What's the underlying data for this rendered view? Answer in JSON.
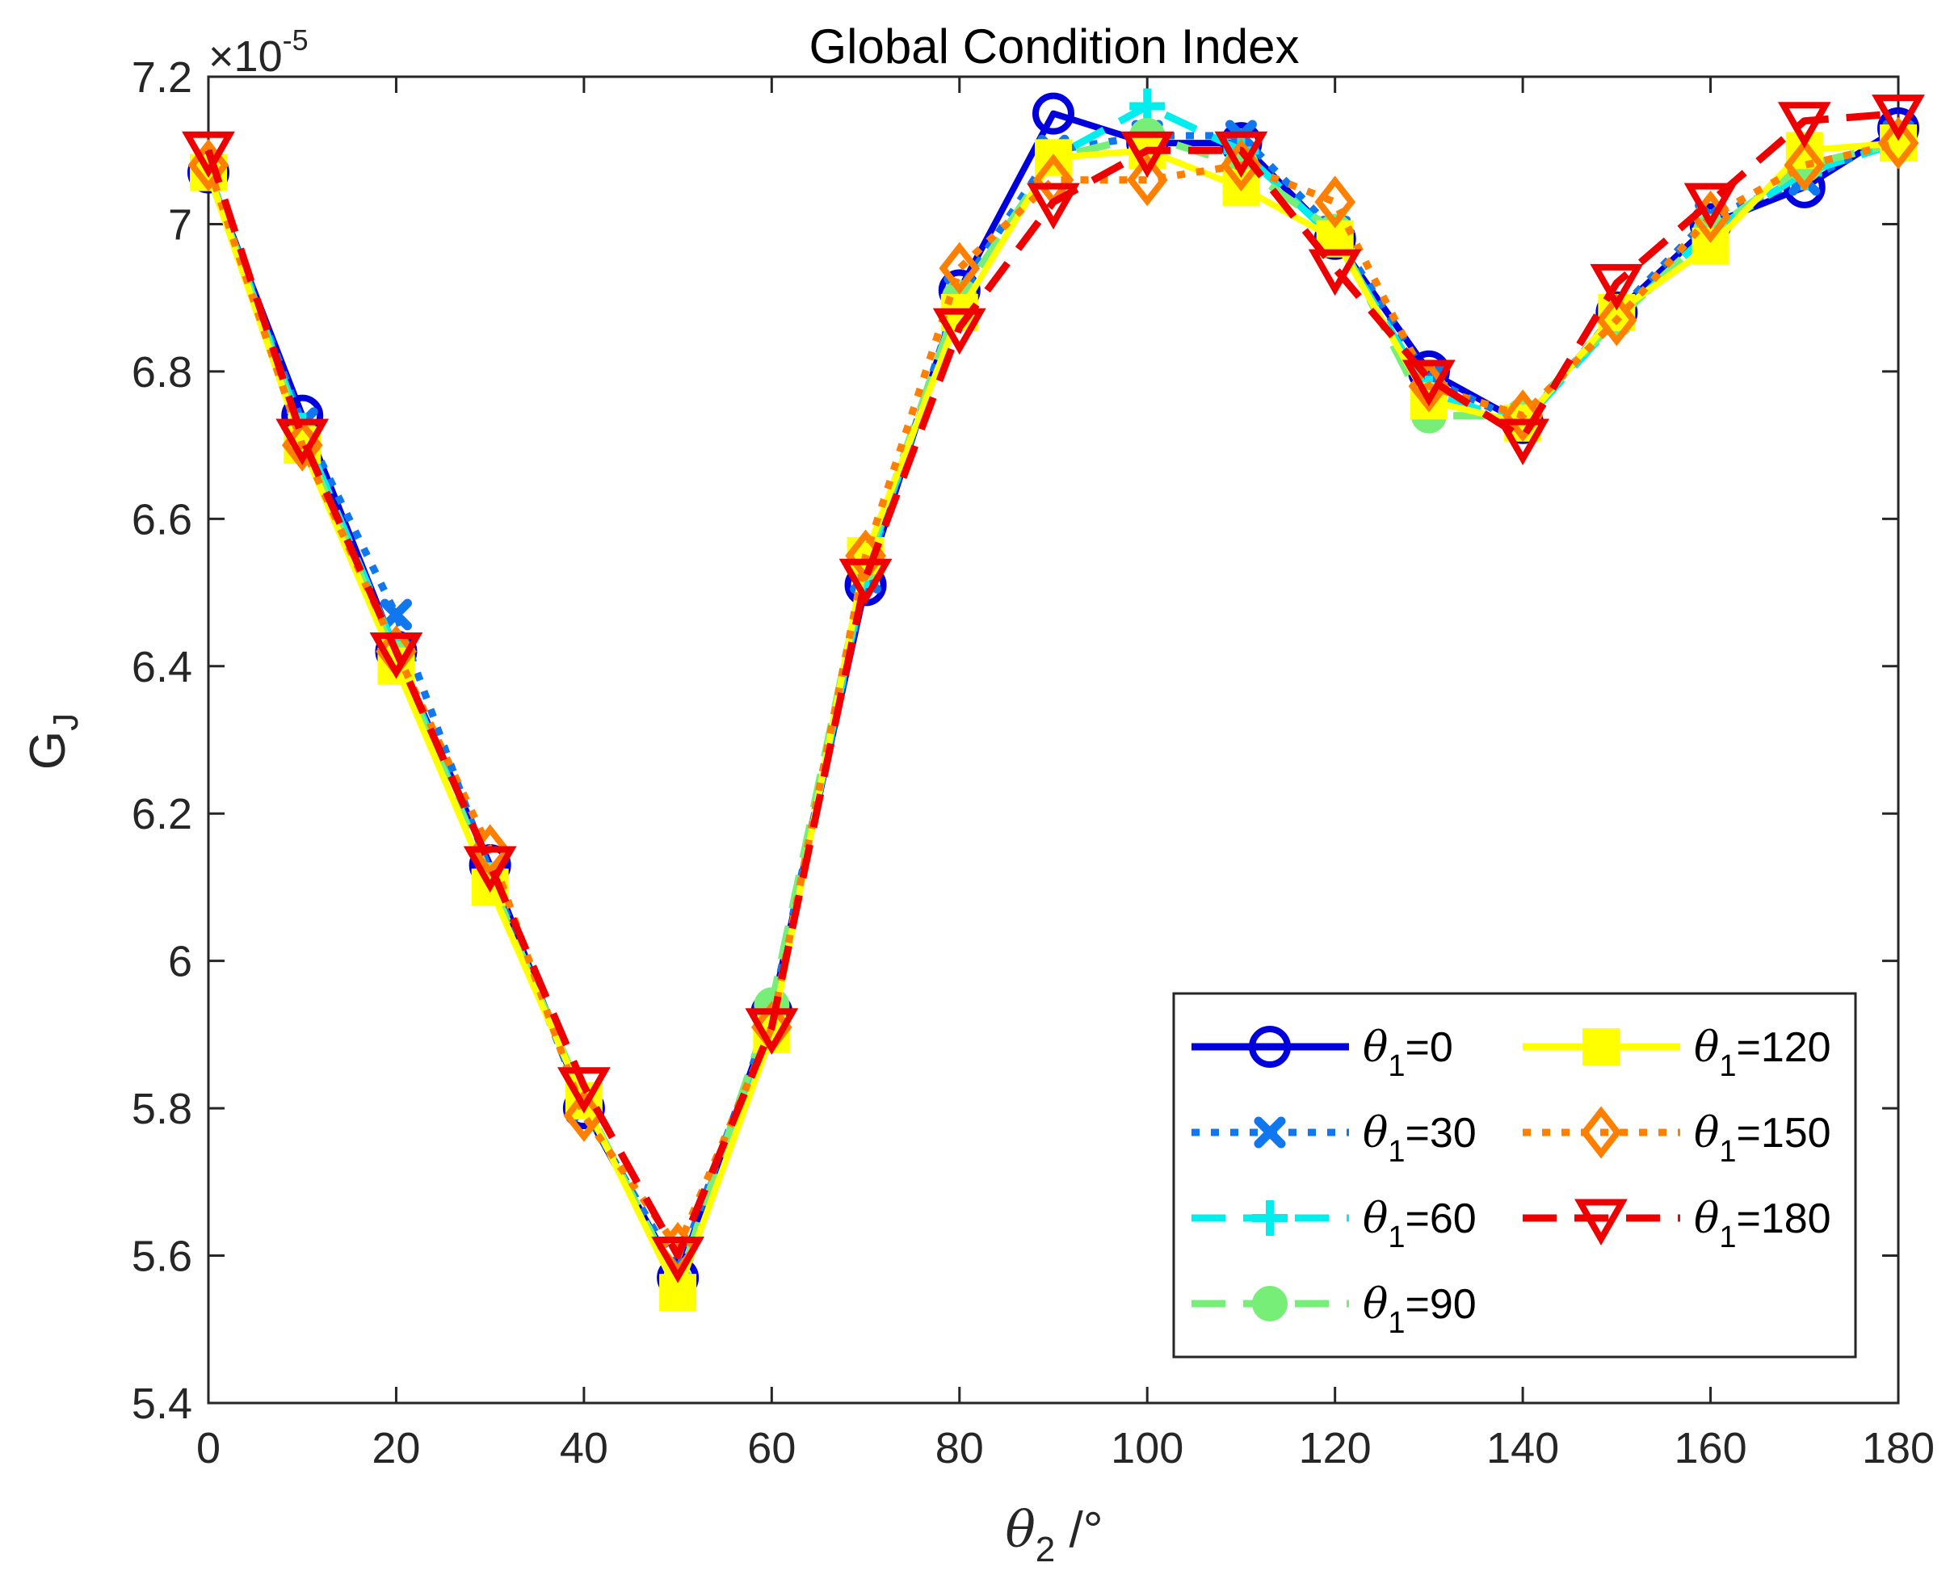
{
  "chart_data": {
    "type": "line",
    "title": "Global Condition Index",
    "xlabel": {
      "symbol": "θ",
      "sub": "2",
      "suffix": " /°"
    },
    "ylabel": {
      "main": "G",
      "sub": "J"
    },
    "y_exponent": {
      "prefix": "×10",
      "power": "-5"
    },
    "xlim": [
      0,
      180
    ],
    "ylim": [
      5.4,
      7.2
    ],
    "x_ticks": [
      0,
      20,
      40,
      60,
      80,
      100,
      120,
      140,
      160,
      180
    ],
    "x_tick_labels": [
      "0",
      "20",
      "40",
      "60",
      "80",
      "100",
      "120",
      "140",
      "160",
      "180"
    ],
    "y_ticks": [
      5.4,
      5.6,
      5.8,
      6.0,
      6.2,
      6.4,
      6.6,
      6.8,
      7.0,
      7.2
    ],
    "y_tick_labels": [
      "5.4",
      "5.6",
      "5.8",
      "6",
      "6.2",
      "6.4",
      "6.6",
      "6.8",
      "7",
      "7.2"
    ],
    "grid": false,
    "legend_position": "bottom-right",
    "x": [
      0,
      10,
      20,
      30,
      40,
      50,
      60,
      70,
      80,
      90,
      100,
      110,
      120,
      130,
      140,
      150,
      160,
      170,
      180
    ],
    "series": [
      {
        "name": "θ1=0",
        "label_main": "θ",
        "label_sub": "1",
        "label_rest": "=0",
        "color": "#0000dd",
        "dash": "solid",
        "marker": "circle",
        "values": [
          7.07,
          6.74,
          6.42,
          6.13,
          5.8,
          5.57,
          5.93,
          6.51,
          6.91,
          7.15,
          7.11,
          7.11,
          6.98,
          6.8,
          6.73,
          6.88,
          7.0,
          7.05,
          7.13
        ]
      },
      {
        "name": "θ1=30",
        "label_main": "θ",
        "label_sub": "1",
        "label_rest": "=30",
        "color": "#1177ee",
        "dash": "dot",
        "marker": "x",
        "values": [
          7.07,
          6.73,
          6.47,
          6.12,
          5.8,
          5.58,
          5.93,
          6.52,
          6.91,
          7.1,
          7.12,
          7.12,
          6.99,
          6.79,
          6.73,
          6.88,
          7.01,
          7.06,
          7.12
        ]
      },
      {
        "name": "θ1=60",
        "label_main": "θ",
        "label_sub": "1",
        "label_rest": "=60",
        "color": "#00eeee",
        "dash": "dash",
        "marker": "plus",
        "values": [
          7.07,
          6.72,
          6.42,
          6.11,
          5.81,
          5.56,
          5.92,
          6.53,
          6.9,
          7.09,
          7.16,
          7.1,
          6.98,
          6.77,
          6.73,
          6.87,
          6.99,
          7.07,
          7.11
        ]
      },
      {
        "name": "θ1=90",
        "label_main": "θ",
        "label_sub": "1",
        "label_rest": "=90",
        "color": "#77ee77",
        "dash": "dash",
        "marker": "filled-circle",
        "values": [
          7.07,
          6.71,
          6.41,
          6.11,
          5.81,
          5.56,
          5.94,
          6.54,
          6.9,
          7.09,
          7.12,
          7.08,
          6.99,
          6.74,
          6.74,
          6.87,
          6.99,
          7.08,
          7.11
        ]
      },
      {
        "name": "θ1=120",
        "label_main": "θ",
        "label_sub": "1",
        "label_rest": "=120",
        "color": "#ffff00",
        "dash": "solid",
        "marker": "square",
        "values": [
          7.07,
          6.7,
          6.4,
          6.1,
          5.81,
          5.55,
          5.9,
          6.55,
          6.88,
          7.09,
          7.1,
          7.05,
          6.98,
          6.76,
          6.73,
          6.88,
          6.97,
          7.1,
          7.11
        ]
      },
      {
        "name": "θ1=150",
        "label_main": "θ",
        "label_sub": "1",
        "label_rest": "=150",
        "color": "#ff7f00",
        "dash": "dot",
        "marker": "diamond",
        "values": [
          7.08,
          6.7,
          6.42,
          6.15,
          5.79,
          5.61,
          5.91,
          6.55,
          6.94,
          7.06,
          7.06,
          7.08,
          7.03,
          6.78,
          6.74,
          6.87,
          7.01,
          7.08,
          7.11
        ]
      },
      {
        "name": "θ1=180",
        "label_main": "θ",
        "label_sub": "1",
        "label_rest": "=180",
        "color": "#ee0000",
        "dash": "dash",
        "marker": "triangle-down",
        "values": [
          7.1,
          6.71,
          6.42,
          6.13,
          5.83,
          5.6,
          5.91,
          6.52,
          6.86,
          7.03,
          7.1,
          7.1,
          6.94,
          6.79,
          6.71,
          6.92,
          7.03,
          7.14,
          7.15
        ]
      }
    ]
  }
}
